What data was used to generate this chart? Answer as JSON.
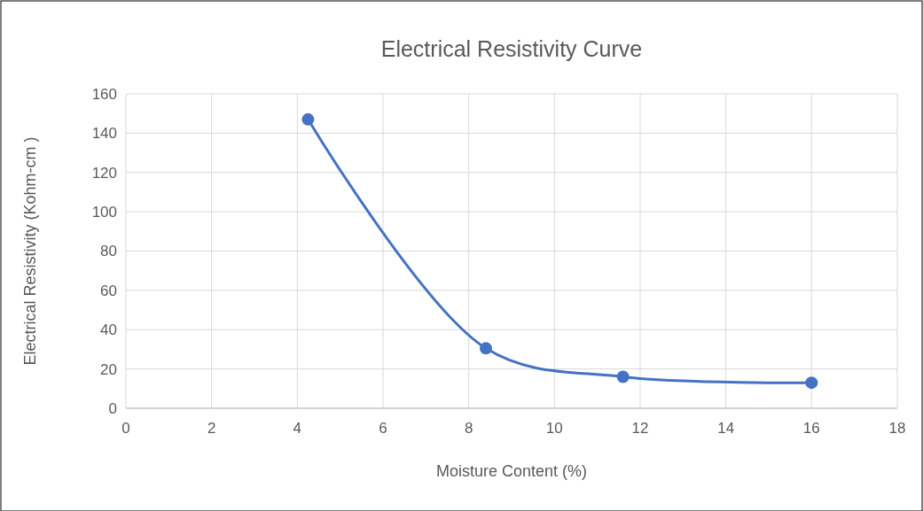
{
  "chart_data": {
    "type": "line",
    "title": "Electrical Resistivity Curve",
    "xlabel": "Moisture Content (%)",
    "ylabel": "Electrical Resistivity (Kohm-cm )",
    "x": [
      4.25,
      8.4,
      11.6,
      16
    ],
    "series": [
      {
        "color": "#4472c4",
        "values": [
          147,
          30.5,
          16,
          13
        ]
      }
    ],
    "xlim": [
      0,
      18
    ],
    "xticks": [
      0,
      2,
      4,
      6,
      8,
      10,
      12,
      14,
      16,
      18
    ],
    "ylim": [
      0,
      160
    ],
    "yticks": [
      0,
      20,
      40,
      60,
      80,
      100,
      120,
      140,
      160
    ],
    "grid": true,
    "marker": "circle",
    "line_style": "solid"
  }
}
